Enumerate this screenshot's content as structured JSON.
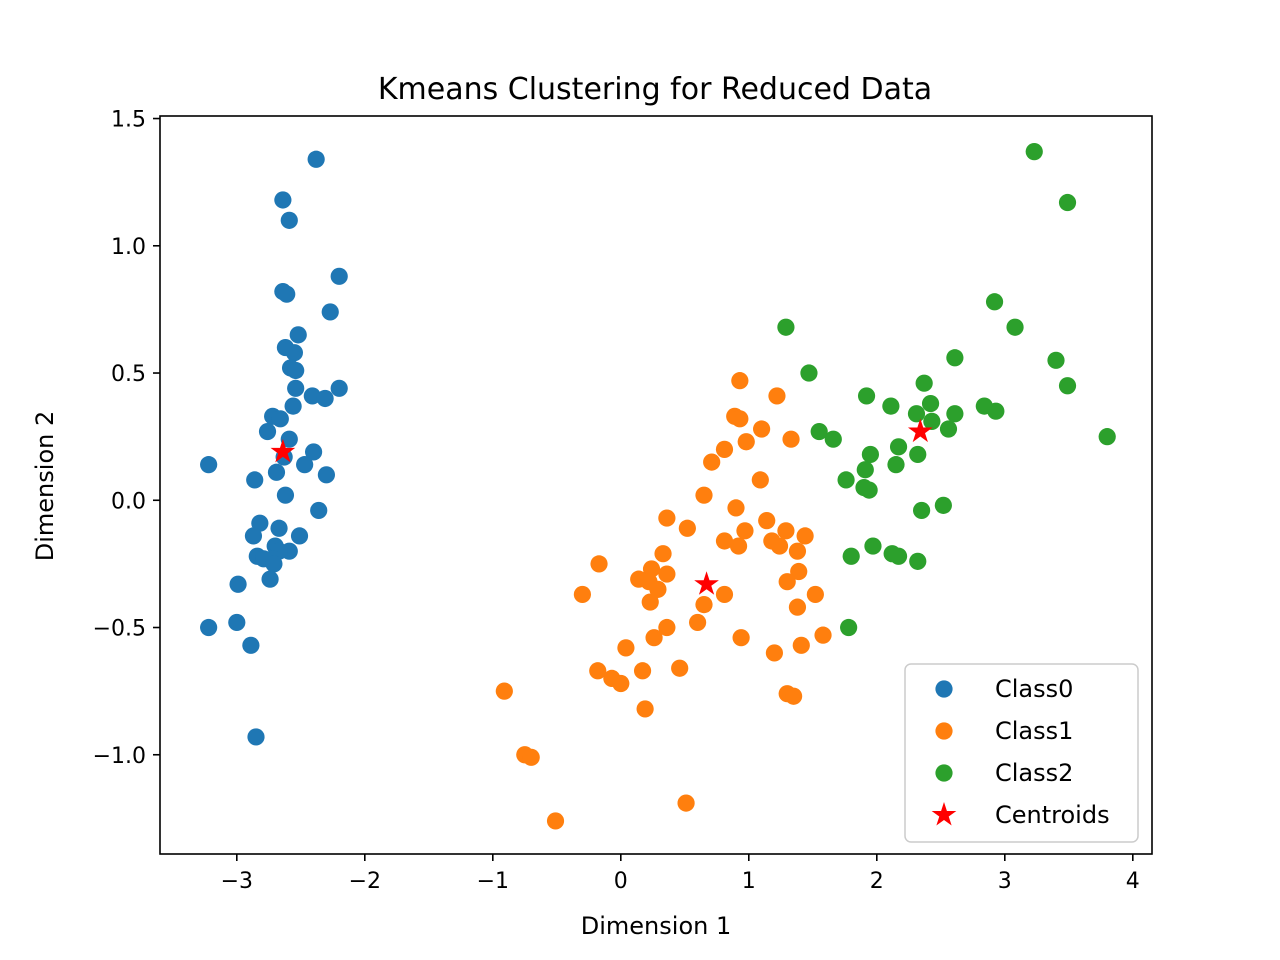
{
  "chart_data": {
    "type": "scatter",
    "title": "Kmeans Clustering for Reduced Data",
    "xlabel": "Dimension 1",
    "ylabel": "Dimension 2",
    "xlim": [
      -3.6,
      4.15
    ],
    "ylim": [
      -1.39,
      1.51
    ],
    "x_ticks": [
      -3,
      -2,
      -1,
      0,
      1,
      2,
      3,
      4
    ],
    "y_ticks": [
      1.5,
      1.0,
      0.5,
      0.0,
      -0.5,
      -1.0
    ],
    "x_tick_labels": [
      "−3",
      "−2",
      "−1",
      "0",
      "1",
      "2",
      "3",
      "4"
    ],
    "y_tick_labels": [
      "1.5",
      "1.0",
      "0.5",
      "0.0",
      "−0.5",
      "−1.0"
    ],
    "grid": false,
    "legend_position": "bottom-right",
    "series": [
      {
        "name": "Class0",
        "color": "#1f77b4",
        "marker": "circle",
        "points": [
          [
            -2.38,
            1.34
          ],
          [
            -2.64,
            1.18
          ],
          [
            -2.59,
            1.1
          ],
          [
            -2.2,
            0.88
          ],
          [
            -2.64,
            0.82
          ],
          [
            -2.61,
            0.81
          ],
          [
            -2.27,
            0.74
          ],
          [
            -2.52,
            0.65
          ],
          [
            -2.62,
            0.6
          ],
          [
            -2.55,
            0.58
          ],
          [
            -2.58,
            0.52
          ],
          [
            -2.54,
            0.51
          ],
          [
            -2.54,
            0.44
          ],
          [
            -2.2,
            0.44
          ],
          [
            -2.41,
            0.41
          ],
          [
            -2.31,
            0.4
          ],
          [
            -2.56,
            0.37
          ],
          [
            -2.72,
            0.33
          ],
          [
            -2.66,
            0.32
          ],
          [
            -2.76,
            0.27
          ],
          [
            -2.59,
            0.24
          ],
          [
            -2.4,
            0.19
          ],
          [
            -2.63,
            0.17
          ],
          [
            -3.22,
            0.14
          ],
          [
            -2.47,
            0.14
          ],
          [
            -2.69,
            0.11
          ],
          [
            -2.3,
            0.1
          ],
          [
            -2.86,
            0.08
          ],
          [
            -2.62,
            0.02
          ],
          [
            -2.36,
            -0.04
          ],
          [
            -2.82,
            -0.09
          ],
          [
            -2.67,
            -0.11
          ],
          [
            -2.87,
            -0.14
          ],
          [
            -2.51,
            -0.14
          ],
          [
            -2.7,
            -0.18
          ],
          [
            -2.59,
            -0.2
          ],
          [
            -2.67,
            -0.2
          ],
          [
            -2.84,
            -0.22
          ],
          [
            -2.72,
            -0.23
          ],
          [
            -2.79,
            -0.23
          ],
          [
            -2.71,
            -0.25
          ],
          [
            -2.74,
            -0.31
          ],
          [
            -2.99,
            -0.33
          ],
          [
            -3.0,
            -0.48
          ],
          [
            -3.22,
            -0.5
          ],
          [
            -2.89,
            -0.57
          ],
          [
            -2.85,
            -0.93
          ]
        ]
      },
      {
        "name": "Class1",
        "color": "#ff7f0e",
        "marker": "circle",
        "points": [
          [
            0.93,
            0.47
          ],
          [
            1.22,
            0.41
          ],
          [
            0.89,
            0.33
          ],
          [
            0.93,
            0.32
          ],
          [
            1.1,
            0.28
          ],
          [
            1.33,
            0.24
          ],
          [
            0.98,
            0.23
          ],
          [
            0.81,
            0.2
          ],
          [
            0.71,
            0.15
          ],
          [
            1.09,
            0.08
          ],
          [
            0.65,
            0.02
          ],
          [
            0.9,
            -0.03
          ],
          [
            0.36,
            -0.07
          ],
          [
            1.14,
            -0.08
          ],
          [
            0.52,
            -0.11
          ],
          [
            1.29,
            -0.12
          ],
          [
            0.97,
            -0.12
          ],
          [
            1.44,
            -0.14
          ],
          [
            1.18,
            -0.16
          ],
          [
            0.81,
            -0.16
          ],
          [
            1.24,
            -0.18
          ],
          [
            0.92,
            -0.18
          ],
          [
            1.38,
            -0.2
          ],
          [
            0.33,
            -0.21
          ],
          [
            -0.17,
            -0.25
          ],
          [
            0.24,
            -0.27
          ],
          [
            0.36,
            -0.29
          ],
          [
            1.39,
            -0.28
          ],
          [
            0.14,
            -0.31
          ],
          [
            0.22,
            -0.32
          ],
          [
            1.3,
            -0.32
          ],
          [
            0.29,
            -0.35
          ],
          [
            -0.3,
            -0.37
          ],
          [
            0.81,
            -0.37
          ],
          [
            1.52,
            -0.37
          ],
          [
            0.23,
            -0.4
          ],
          [
            0.65,
            -0.41
          ],
          [
            1.38,
            -0.42
          ],
          [
            0.6,
            -0.48
          ],
          [
            0.36,
            -0.5
          ],
          [
            1.58,
            -0.53
          ],
          [
            0.26,
            -0.54
          ],
          [
            0.94,
            -0.54
          ],
          [
            1.41,
            -0.57
          ],
          [
            0.04,
            -0.58
          ],
          [
            1.2,
            -0.6
          ],
          [
            -0.18,
            -0.67
          ],
          [
            0.17,
            -0.67
          ],
          [
            0.46,
            -0.66
          ],
          [
            -0.07,
            -0.7
          ],
          [
            0.0,
            -0.72
          ],
          [
            -0.91,
            -0.75
          ],
          [
            1.3,
            -0.76
          ],
          [
            1.35,
            -0.77
          ],
          [
            0.19,
            -0.82
          ],
          [
            -0.75,
            -1.0
          ],
          [
            -0.7,
            -1.01
          ],
          [
            0.51,
            -1.19
          ],
          [
            -0.51,
            -1.26
          ]
        ]
      },
      {
        "name": "Class2",
        "color": "#2ca02c",
        "marker": "circle",
        "points": [
          [
            3.23,
            1.37
          ],
          [
            3.49,
            1.17
          ],
          [
            2.92,
            0.78
          ],
          [
            1.29,
            0.68
          ],
          [
            3.08,
            0.68
          ],
          [
            2.61,
            0.56
          ],
          [
            3.4,
            0.55
          ],
          [
            1.47,
            0.5
          ],
          [
            2.37,
            0.46
          ],
          [
            3.49,
            0.45
          ],
          [
            1.92,
            0.41
          ],
          [
            2.11,
            0.37
          ],
          [
            2.42,
            0.38
          ],
          [
            2.84,
            0.37
          ],
          [
            2.93,
            0.35
          ],
          [
            2.31,
            0.34
          ],
          [
            2.61,
            0.34
          ],
          [
            2.43,
            0.31
          ],
          [
            2.56,
            0.28
          ],
          [
            1.55,
            0.27
          ],
          [
            3.8,
            0.25
          ],
          [
            1.66,
            0.24
          ],
          [
            2.17,
            0.21
          ],
          [
            1.95,
            0.18
          ],
          [
            2.32,
            0.18
          ],
          [
            2.15,
            0.14
          ],
          [
            1.91,
            0.12
          ],
          [
            1.76,
            0.08
          ],
          [
            1.9,
            0.05
          ],
          [
            1.94,
            0.04
          ],
          [
            2.52,
            -0.02
          ],
          [
            2.35,
            -0.04
          ],
          [
            1.97,
            -0.18
          ],
          [
            2.12,
            -0.21
          ],
          [
            2.17,
            -0.22
          ],
          [
            1.8,
            -0.22
          ],
          [
            2.32,
            -0.24
          ],
          [
            1.78,
            -0.5
          ]
        ]
      },
      {
        "name": "Centroids",
        "color": "#ff0000",
        "marker": "star",
        "points": [
          [
            -2.64,
            0.19
          ],
          [
            0.67,
            -0.33
          ],
          [
            2.34,
            0.27
          ]
        ]
      }
    ]
  }
}
